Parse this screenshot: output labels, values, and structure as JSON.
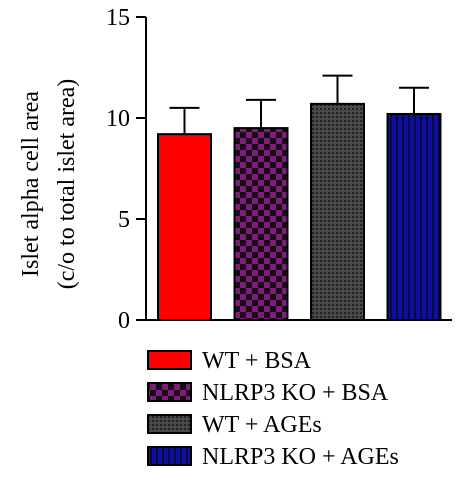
{
  "chart_data": {
    "type": "bar",
    "categories": [
      "WT + BSA",
      "NLRP3 KO + BSA",
      "WT + AGEs",
      "NLRP3 KO + AGEs"
    ],
    "series": [
      {
        "values": [
          9.2,
          9.5,
          10.7,
          10.2
        ],
        "error": [
          1.3,
          1.4,
          1.4,
          1.3
        ]
      }
    ],
    "ylabel_line1": "Islet alpha cell area",
    "ylabel_line2": "(c/o to total islet area)",
    "ylim": [
      0,
      15
    ],
    "yticks": [
      0,
      5,
      10,
      15
    ],
    "grid": false,
    "legend_position": "bottom",
    "colors": [
      "#ff0000",
      "#7b1f78",
      "#444444",
      "#1010a0"
    ],
    "patterns": [
      "solid",
      "checker",
      "dots",
      "stripes"
    ]
  }
}
